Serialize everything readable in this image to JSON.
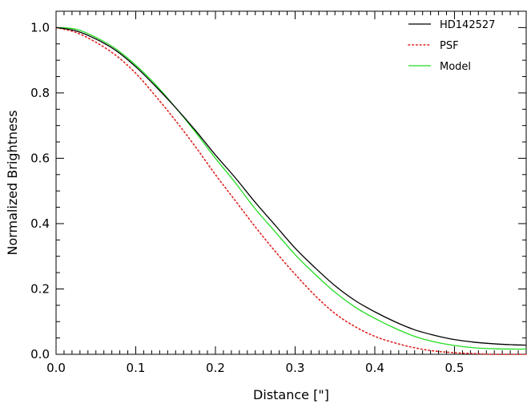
{
  "chart_data": {
    "type": "line",
    "title": "",
    "xlabel": "Distance [\"]",
    "ylabel": "Normalized Brightness",
    "xlim": [
      0.0,
      0.59
    ],
    "ylim": [
      0.0,
      1.05
    ],
    "x_ticks": [
      "0.0",
      "0.1",
      "0.2",
      "0.3",
      "0.4",
      "0.5"
    ],
    "y_ticks": [
      "0.0",
      "0.2",
      "0.4",
      "0.6",
      "0.8",
      "1.0"
    ],
    "grid": false,
    "legend_position": "top-right",
    "series": [
      {
        "name": "HD142527",
        "color": "#000000",
        "dash": "solid",
        "x": [
          0.0,
          0.025,
          0.05,
          0.075,
          0.1,
          0.125,
          0.15,
          0.175,
          0.2,
          0.225,
          0.25,
          0.275,
          0.3,
          0.325,
          0.35,
          0.375,
          0.4,
          0.425,
          0.45,
          0.475,
          0.5,
          0.525,
          0.55,
          0.575,
          0.59
        ],
        "y": [
          1.0,
          0.99,
          0.965,
          0.93,
          0.88,
          0.82,
          0.755,
          0.685,
          0.61,
          0.54,
          0.465,
          0.395,
          0.325,
          0.265,
          0.21,
          0.165,
          0.13,
          0.1,
          0.075,
          0.058,
          0.045,
          0.037,
          0.032,
          0.029,
          0.028
        ]
      },
      {
        "name": "PSF",
        "color": "#e02020",
        "dash": "dotted",
        "x": [
          0.0,
          0.025,
          0.05,
          0.075,
          0.1,
          0.125,
          0.15,
          0.175,
          0.2,
          0.225,
          0.25,
          0.275,
          0.3,
          0.325,
          0.35,
          0.375,
          0.4,
          0.425,
          0.45,
          0.475,
          0.5,
          0.525,
          0.55,
          0.575,
          0.59
        ],
        "y": [
          1.0,
          0.985,
          0.955,
          0.915,
          0.86,
          0.79,
          0.715,
          0.635,
          0.55,
          0.47,
          0.39,
          0.315,
          0.245,
          0.18,
          0.125,
          0.085,
          0.055,
          0.035,
          0.02,
          0.01,
          0.005,
          0.002,
          0.0,
          0.0,
          0.0
        ]
      },
      {
        "name": "Model",
        "color": "#22dd22",
        "dash": "solid",
        "x": [
          0.0,
          0.025,
          0.05,
          0.075,
          0.1,
          0.125,
          0.15,
          0.175,
          0.2,
          0.225,
          0.25,
          0.275,
          0.3,
          0.325,
          0.35,
          0.375,
          0.4,
          0.425,
          0.45,
          0.475,
          0.5,
          0.525,
          0.55,
          0.575,
          0.59
        ],
        "y": [
          1.0,
          0.995,
          0.97,
          0.935,
          0.885,
          0.825,
          0.755,
          0.68,
          0.6,
          0.525,
          0.445,
          0.375,
          0.305,
          0.245,
          0.19,
          0.145,
          0.11,
          0.08,
          0.055,
          0.038,
          0.027,
          0.02,
          0.017,
          0.016,
          0.016
        ]
      }
    ]
  }
}
